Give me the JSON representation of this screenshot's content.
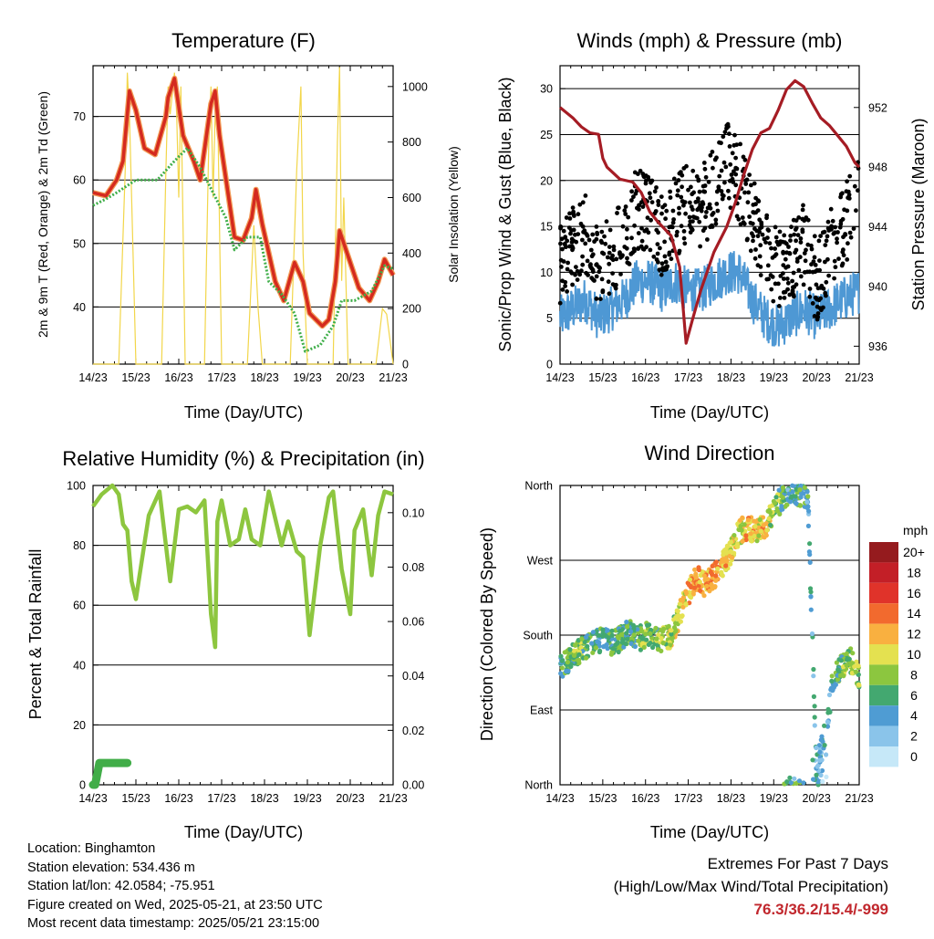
{
  "colors": {
    "temp": "#d42a1f",
    "temp_outline": "#f29a55",
    "dew": "#3fae49",
    "solar": "#f2d64a",
    "gust": "#000000",
    "wind": "#4e98d4",
    "pressure": "#a51c24",
    "rh": "#8dc63f",
    "precip": "#41ad48",
    "extremes": "#c1272d",
    "speed_scale": [
      "#c6e8f8",
      "#8ac4ea",
      "#4f9cd3",
      "#43a870",
      "#8cc63f",
      "#e4e150",
      "#f9b040",
      "#f26a2e",
      "#e0332a",
      "#c31f27",
      "#951b1e"
    ]
  },
  "footer": {
    "location": "Location: Binghamton",
    "elevation": "Station elevation: 534.436 m",
    "latlon": "Station lat/lon: 42.0584; -75.951",
    "created": "Figure created on Wed, 2025-05-21, at 23:50 UTC",
    "recent": "Most recent data timestamp: 2025/05/21 23:15:00"
  },
  "extremes": {
    "title": "Extremes For Past 7 Days",
    "subtitle": "(High/Low/Max Wind/Total Precipitation)",
    "values": "76.3/36.2/15.4/-999"
  },
  "chart_data": [
    {
      "type": "line",
      "title": "Temperature (F)",
      "xlabel": "Time (Day/UTC)",
      "ylabel": "2m & 9m T (Red, Orange) & 2m Td (Green)",
      "y2label": "Solar Insolation (Yellow)",
      "xticks": [
        "14/23",
        "15/23",
        "16/23",
        "17/23",
        "18/23",
        "19/23",
        "20/23",
        "21/23"
      ],
      "xlim": [
        0,
        7
      ],
      "ylim": [
        31,
        78
      ],
      "yticks": [
        40,
        50,
        60,
        70
      ],
      "y2lim": [
        0,
        1075
      ],
      "y2ticks": [
        0,
        200,
        400,
        600,
        800,
        1000
      ],
      "grid": true,
      "series": [
        {
          "name": "2m T",
          "axis": "left",
          "x": [
            0,
            0.3,
            0.55,
            0.7,
            0.85,
            1.0,
            1.2,
            1.45,
            1.7,
            1.75,
            1.9,
            2.1,
            2.35,
            2.5,
            2.75,
            2.85,
            2.95,
            3.3,
            3.5,
            3.7,
            3.8,
            3.95,
            4.25,
            4.45,
            4.7,
            4.9,
            5.05,
            5.35,
            5.5,
            5.65,
            5.75,
            5.9,
            6.2,
            6.45,
            6.65,
            6.8,
            7.0
          ],
          "y": [
            58,
            57.5,
            60,
            63,
            74,
            71,
            65,
            64,
            70,
            73,
            76,
            67,
            63,
            60,
            72,
            74,
            67,
            51,
            50.5,
            54,
            58.5,
            53,
            44,
            41,
            47,
            44,
            39,
            37,
            38,
            44,
            52,
            49,
            43,
            41,
            44,
            47.5,
            45
          ]
        },
        {
          "name": "2m Td",
          "axis": "left",
          "x": [
            0,
            0.3,
            0.55,
            1.0,
            1.5,
            1.9,
            2.2,
            2.5,
            2.8,
            3.1,
            3.3,
            3.6,
            3.9,
            4.1,
            4.4,
            4.7,
            4.95,
            5.3,
            5.6,
            5.8,
            6.1,
            6.5,
            6.8,
            7.0
          ],
          "y": [
            56,
            57,
            58,
            60,
            60,
            63,
            65,
            62,
            58,
            54,
            49,
            51,
            51,
            44,
            42,
            39,
            33,
            34,
            37,
            41,
            41,
            42.5,
            46.5,
            46
          ]
        },
        {
          "name": "Solar Insolation",
          "axis": "right",
          "x": [
            0,
            0.6,
            0.75,
            0.8,
            0.85,
            0.9,
            1.0,
            1.6,
            1.7,
            1.75,
            1.8,
            1.9,
            1.95,
            2.0,
            2.05,
            2.15,
            2.6,
            2.7,
            2.75,
            2.8,
            2.85,
            2.9,
            3.0,
            3.6,
            3.75,
            3.85,
            3.95,
            4.6,
            4.75,
            4.85,
            4.9,
            5.0,
            5.6,
            5.7,
            5.75,
            5.8,
            5.85,
            5.95,
            6.6,
            6.75,
            6.85,
            7.0
          ],
          "y": [
            0,
            0,
            700,
            1050,
            900,
            600,
            0,
            0,
            700,
            1000,
            900,
            1050,
            900,
            600,
            1000,
            0,
            0,
            800,
            1000,
            600,
            900,
            1000,
            0,
            0,
            500,
            200,
            0,
            0,
            700,
            1000,
            400,
            0,
            0,
            800,
            1070,
            300,
            600,
            0,
            0,
            200,
            180,
            0
          ]
        }
      ]
    },
    {
      "type": "scatter",
      "title": "Winds (mph) & Pressure (mb)",
      "xlabel": "Time (Day/UTC)",
      "ylabel": "Sonic/Prop Wind & Gust (Blue, Black)",
      "y2label": "Station Pressure (Maroon)",
      "xticks": [
        "14/23",
        "15/23",
        "16/23",
        "17/23",
        "18/23",
        "19/23",
        "20/23",
        "21/23"
      ],
      "xlim": [
        0,
        7
      ],
      "ylim": [
        0,
        32.5
      ],
      "yticks": [
        0,
        5,
        10,
        15,
        20,
        25,
        30
      ],
      "y2lim": [
        934.8,
        954.8
      ],
      "y2ticks": [
        936,
        940,
        944,
        948,
        952
      ],
      "grid": true,
      "series": [
        {
          "name": "Wind",
          "axis": "left",
          "x": [
            0,
            0.3,
            0.6,
            0.9,
            1.2,
            1.5,
            1.8,
            2.1,
            2.4,
            2.7,
            3.0,
            3.3,
            3.6,
            3.9,
            4.2,
            4.5,
            4.8,
            5.1,
            5.4,
            5.7,
            6.0,
            6.3,
            6.6,
            7.0
          ],
          "y": [
            5,
            6,
            7,
            5,
            6,
            7,
            9,
            9,
            8,
            9,
            8,
            8,
            9,
            10,
            10,
            7,
            5,
            4,
            5,
            6,
            5,
            6,
            7,
            8
          ]
        },
        {
          "name": "Gust",
          "axis": "left",
          "x": [
            0,
            0.3,
            0.6,
            0.9,
            1.2,
            1.5,
            1.8,
            2.1,
            2.4,
            2.7,
            3.0,
            3.3,
            3.6,
            3.9,
            4.2,
            4.5,
            4.8,
            5.1,
            5.4,
            5.7,
            6.0,
            6.3,
            6.6,
            7.0
          ],
          "y": [
            11,
            13,
            14,
            11,
            12,
            13,
            17,
            16,
            14,
            16,
            18,
            17,
            19,
            22,
            20,
            16,
            13,
            10,
            11,
            13,
            9,
            12,
            15,
            18
          ]
        },
        {
          "name": "Station Pressure",
          "axis": "right",
          "x": [
            0,
            0.3,
            0.5,
            0.7,
            0.9,
            1.0,
            1.1,
            1.4,
            1.7,
            1.9,
            2.1,
            2.3,
            2.6,
            2.8,
            2.95,
            3.1,
            3.3,
            3.6,
            3.9,
            4.1,
            4.3,
            4.5,
            4.7,
            4.9,
            5.1,
            5.3,
            5.5,
            5.7,
            5.9,
            6.1,
            6.3,
            6.5,
            6.7,
            6.9,
            7.0
          ],
          "y": [
            952,
            951.3,
            950.7,
            950.3,
            950.2,
            948.6,
            948,
            947.2,
            947,
            946.3,
            945,
            944.3,
            943.4,
            941.3,
            936.2,
            937.8,
            939.8,
            942.3,
            944,
            945.6,
            947.5,
            949.2,
            950.3,
            950.6,
            951.8,
            953.2,
            953.8,
            953.4,
            952.3,
            951.3,
            950.8,
            950.1,
            949.4,
            948.3,
            948
          ]
        }
      ]
    },
    {
      "type": "line",
      "title": "Relative Humidity (%) & Precipitation (in)",
      "xlabel": "Time (Day/UTC)",
      "ylabel": "Percent & Total Rainfall",
      "xticks": [
        "14/23",
        "15/23",
        "16/23",
        "17/23",
        "18/23",
        "19/23",
        "20/23",
        "21/23"
      ],
      "xlim": [
        0,
        7
      ],
      "ylim": [
        0,
        100
      ],
      "yticks": [
        0,
        20,
        40,
        60,
        80,
        100
      ],
      "y2lim": [
        0,
        0.11
      ],
      "y2ticks": [
        "0.00",
        "0.02",
        "0.04",
        "0.06",
        "0.08",
        "0.10"
      ],
      "grid": true,
      "series": [
        {
          "name": "RH",
          "axis": "left",
          "x": [
            0,
            0.2,
            0.45,
            0.6,
            0.7,
            0.8,
            0.9,
            1.0,
            1.3,
            1.55,
            1.8,
            2.0,
            2.2,
            2.4,
            2.6,
            2.75,
            2.85,
            2.9,
            3.0,
            3.2,
            3.4,
            3.55,
            3.7,
            3.9,
            4.1,
            4.2,
            4.4,
            4.55,
            4.75,
            4.9,
            5.05,
            5.3,
            5.5,
            5.6,
            5.8,
            6.0,
            6.1,
            6.3,
            6.5,
            6.65,
            6.8,
            7.0
          ],
          "y": [
            93,
            97,
            100,
            97,
            87,
            85,
            68,
            62,
            90,
            98,
            68,
            92,
            93,
            91,
            95,
            57,
            46,
            88,
            95,
            80,
            82,
            92,
            82,
            80,
            98,
            92,
            80,
            88,
            78,
            76,
            50,
            80,
            96,
            98,
            72,
            57,
            85,
            92,
            70,
            90,
            98,
            97
          ]
        },
        {
          "name": "Total Rainfall",
          "axis": "right",
          "x": [
            0,
            0.05,
            0.1,
            0.15,
            0.2,
            0.4,
            0.8
          ],
          "y": [
            0,
            0,
            0.004,
            0.008,
            0.008,
            0.008,
            0.008
          ]
        }
      ]
    },
    {
      "type": "scatter",
      "title": "Wind Direction",
      "xlabel": "Time (Day/UTC)",
      "ylabel": "Direction (Colored By Speed)",
      "xticks": [
        "14/23",
        "15/23",
        "16/23",
        "17/23",
        "18/23",
        "19/23",
        "20/23",
        "21/23"
      ],
      "xlim": [
        0,
        7
      ],
      "ylim": [
        0,
        360
      ],
      "yticks": [
        "North",
        "East",
        "South",
        "West",
        "North"
      ],
      "legend": {
        "title": "mph",
        "labels": [
          "0",
          "2",
          "4",
          "6",
          "8",
          "10",
          "12",
          "14",
          "16",
          "18",
          "20+"
        ],
        "position": "right"
      },
      "grid": true,
      "series": [
        {
          "name": "Direction",
          "x": [
            0,
            0.2,
            0.4,
            0.6,
            0.8,
            1.0,
            1.2,
            1.4,
            1.6,
            1.8,
            2.0,
            2.2,
            2.4,
            2.6,
            2.8,
            3.0,
            3.2,
            3.4,
            3.6,
            3.8,
            4.0,
            4.2,
            4.4,
            4.6,
            4.8,
            5.0,
            5.2,
            5.4,
            5.6,
            5.8,
            6.0,
            6.2,
            6.4,
            6.6,
            6.8,
            7.0
          ],
          "y": [
            140,
            150,
            160,
            165,
            170,
            175,
            170,
            175,
            185,
            175,
            180,
            180,
            175,
            180,
            205,
            230,
            250,
            240,
            250,
            265,
            280,
            305,
            310,
            305,
            310,
            330,
            345,
            355,
            350,
            345,
            20,
            60,
            130,
            145,
            150,
            130
          ],
          "speed": [
            5,
            6,
            8,
            6,
            6,
            5,
            6,
            7,
            7,
            6,
            8,
            7,
            8,
            9,
            10,
            12,
            13,
            12,
            13,
            11,
            10,
            9,
            12,
            10,
            11,
            8,
            6,
            5,
            6,
            5,
            4,
            3,
            6,
            7,
            8,
            8
          ]
        }
      ]
    }
  ]
}
